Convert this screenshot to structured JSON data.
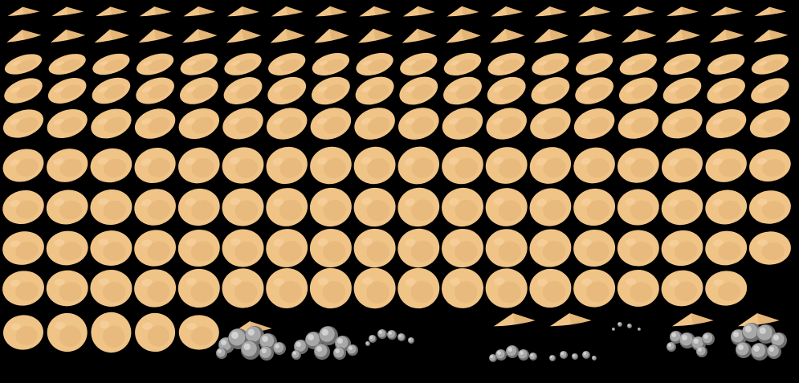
{
  "sprite_sheet": {
    "subject": "spinning-cookie-and-dust-cloud-animation-frames",
    "background_color": "#000000",
    "colors": {
      "cookie_fill": "#F0C487",
      "cookie_shade": "#D9A96A",
      "cookie_highlight": "#F7D4A3",
      "smoke_fill": "#A8A8A8",
      "smoke_light": "#D2D2D2",
      "smoke_dark": "#6E6E6E"
    },
    "rows": [
      {
        "name": "cookie-edge-on",
        "frame_count": 18
      },
      {
        "name": "cookie-tilt-small",
        "frame_count": 18
      },
      {
        "name": "cookie-tilt-medium",
        "frame_count": 18
      },
      {
        "name": "cookie-tilt-large",
        "frame_count": 18
      },
      {
        "name": "cookie-tilt-wide",
        "frame_count": 18
      },
      {
        "name": "cookie-near-face-on",
        "frame_count": 18
      },
      {
        "name": "cookie-face-on",
        "frame_count": 18
      },
      {
        "name": "cookie-face-on-late",
        "frame_count": 18
      },
      {
        "name": "cookie-face-on-final",
        "frame_count": 17
      },
      {
        "name": "cookie-last-and-dust-puffs",
        "frame_count": 5
      }
    ],
    "dust_frames": [
      {
        "name": "dust-puff-large-cookie-top",
        "kind": "large-with-cookie"
      },
      {
        "name": "dust-puff-large",
        "kind": "large"
      },
      {
        "name": "dust-trail",
        "kind": "trail"
      },
      {
        "name": "dust-specks",
        "kind": "specks"
      },
      {
        "name": "cookie-edge-dust-small",
        "kind": "small-with-cookie"
      },
      {
        "name": "cookie-edge-dust-scatter",
        "kind": "scatter-with-cookie"
      },
      {
        "name": "cookie-edge-dust-medium",
        "kind": "medium-with-cookie"
      },
      {
        "name": "cookie-edge-dust-full",
        "kind": "full-with-cookie"
      }
    ]
  }
}
